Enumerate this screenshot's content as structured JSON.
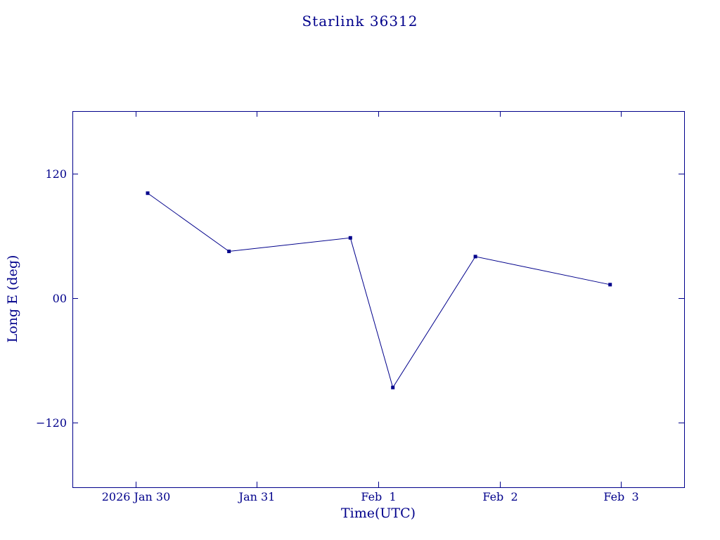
{
  "colors": {
    "plot": "#00008B",
    "background": "#FFFFFF"
  },
  "chart_data": {
    "type": "line",
    "title": "Starlink 36312",
    "xlabel": "Time(UTC)",
    "ylabel": "Long E (deg)",
    "grid": false,
    "legend": "none",
    "xlim": [
      -0.52,
      4.52
    ],
    "ylim": [
      -182,
      180
    ],
    "x_ticks": [
      {
        "pos": 0,
        "label": "2026 Jan 30"
      },
      {
        "pos": 1,
        "label": "Jan 31"
      },
      {
        "pos": 2,
        "label": "Feb  1"
      },
      {
        "pos": 3,
        "label": "Feb  2"
      },
      {
        "pos": 4,
        "label": "Feb  3"
      }
    ],
    "y_ticks": [
      {
        "pos": 120,
        "label": "120"
      },
      {
        "pos": 0,
        "label": "00"
      },
      {
        "pos": -120,
        "label": "−120"
      }
    ],
    "series": [
      {
        "name": "Long E (deg)",
        "marker": "filled-square",
        "points": [
          {
            "x": 0.1,
            "y": 101
          },
          {
            "x": 0.77,
            "y": 45
          },
          {
            "x": 1.77,
            "y": 58
          },
          {
            "x": 2.12,
            "y": -86
          },
          {
            "x": 2.8,
            "y": 40
          },
          {
            "x": 3.91,
            "y": 13
          }
        ]
      }
    ]
  }
}
